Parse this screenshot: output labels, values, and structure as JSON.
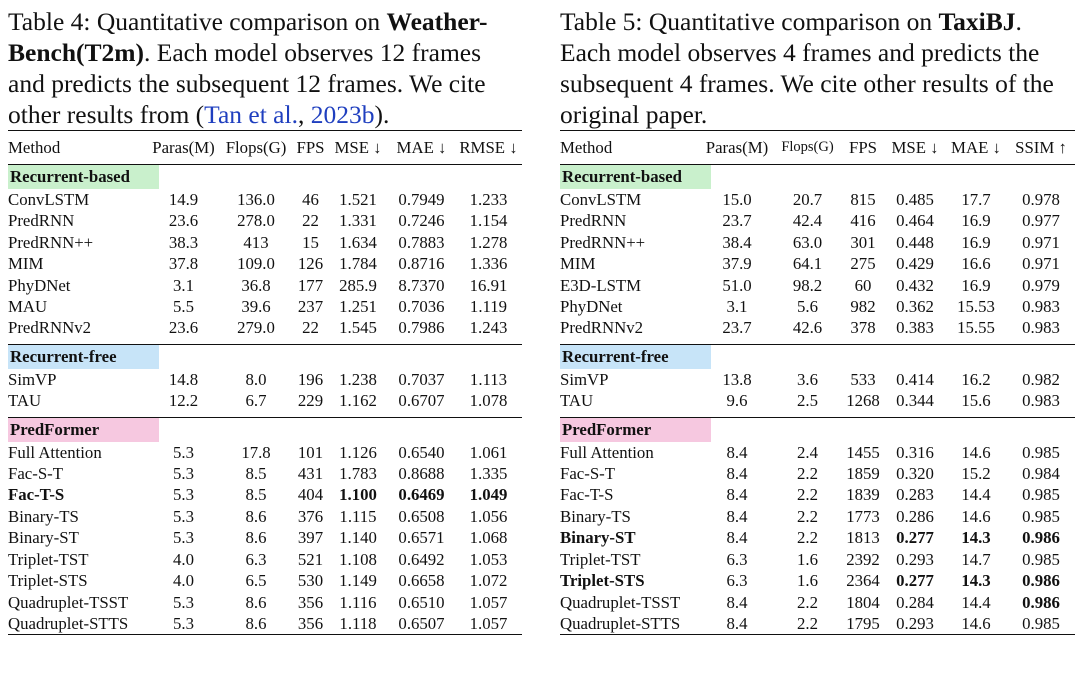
{
  "left_table": {
    "caption": {
      "prefix": "Table 4: Quantitative comparison on ",
      "dataset": "Weather-Bench(T2m)",
      "after_dataset": ". Each model observes 12 frames and predicts the subsequent 12 frames. We cite other results from (",
      "cite_author": "Tan et al.",
      "cite_sep": ", ",
      "cite_year": "2023b",
      "suffix": ")."
    },
    "columns": [
      "Method",
      "Paras(M)",
      "Flops(G)",
      "FPS",
      "MSE ↓",
      "MAE ↓",
      "RMSE ↓"
    ],
    "sections": [
      {
        "label": "Recurrent-based",
        "rows": [
          {
            "cells": [
              "ConvLSTM",
              "14.9",
              "136.0",
              "46",
              "1.521",
              "0.7949",
              "1.233"
            ],
            "bold": []
          },
          {
            "cells": [
              "PredRNN",
              "23.6",
              "278.0",
              "22",
              "1.331",
              "0.7246",
              "1.154"
            ],
            "bold": []
          },
          {
            "cells": [
              "PredRNN++",
              "38.3",
              "413",
              "15",
              "1.634",
              "0.7883",
              "1.278"
            ],
            "bold": []
          },
          {
            "cells": [
              "MIM",
              "37.8",
              "109.0",
              "126",
              "1.784",
              "0.8716",
              "1.336"
            ],
            "bold": []
          },
          {
            "cells": [
              "PhyDNet",
              "3.1",
              "36.8",
              "177",
              "285.9",
              "8.7370",
              "16.91"
            ],
            "bold": []
          },
          {
            "cells": [
              "MAU",
              "5.5",
              "39.6",
              "237",
              "1.251",
              "0.7036",
              "1.119"
            ],
            "bold": []
          },
          {
            "cells": [
              "PredRNNv2",
              "23.6",
              "279.0",
              "22",
              "1.545",
              "0.7986",
              "1.243"
            ],
            "bold": []
          }
        ]
      },
      {
        "label": "Recurrent-free",
        "rows": [
          {
            "cells": [
              "SimVP",
              "14.8",
              "8.0",
              "196",
              "1.238",
              "0.7037",
              "1.113"
            ],
            "bold": []
          },
          {
            "cells": [
              "TAU",
              "12.2",
              "6.7",
              "229",
              "1.162",
              "0.6707",
              "1.078"
            ],
            "bold": []
          }
        ]
      },
      {
        "label": "PredFormer",
        "rows": [
          {
            "cells": [
              "Full Attention",
              "5.3",
              "17.8",
              "101",
              "1.126",
              "0.6540",
              "1.061"
            ],
            "bold": []
          },
          {
            "cells": [
              "Fac-S-T",
              "5.3",
              "8.5",
              "431",
              "1.783",
              "0.8688",
              "1.335"
            ],
            "bold": []
          },
          {
            "cells": [
              "Fac-T-S",
              "5.3",
              "8.5",
              "404",
              "1.100",
              "0.6469",
              "1.049"
            ],
            "bold": [
              0,
              4,
              5,
              6
            ]
          },
          {
            "cells": [
              "Binary-TS",
              "5.3",
              "8.6",
              "376",
              "1.115",
              "0.6508",
              "1.056"
            ],
            "bold": []
          },
          {
            "cells": [
              "Binary-ST",
              "5.3",
              "8.6",
              "397",
              "1.140",
              "0.6571",
              "1.068"
            ],
            "bold": []
          },
          {
            "cells": [
              "Triplet-TST",
              "4.0",
              "6.3",
              "521",
              "1.108",
              "0.6492",
              "1.053"
            ],
            "bold": []
          },
          {
            "cells": [
              "Triplet-STS",
              "4.0",
              "6.5",
              "530",
              "1.149",
              "0.6658",
              "1.072"
            ],
            "bold": []
          },
          {
            "cells": [
              "Quadruplet-TSST",
              "5.3",
              "8.6",
              "356",
              "1.116",
              "0.6510",
              "1.057"
            ],
            "bold": []
          },
          {
            "cells": [
              "Quadruplet-STTS",
              "5.3",
              "8.6",
              "356",
              "1.118",
              "0.6507",
              "1.057"
            ],
            "bold": []
          }
        ]
      }
    ]
  },
  "right_table": {
    "caption": {
      "prefix": "Table 5: Quantitative comparison on ",
      "dataset": "TaxiBJ",
      "after_dataset": ". Each model observes 4 frames and predicts the subsequent 4 frames. We cite other results of the original paper."
    },
    "columns": [
      "Method",
      "Paras(M)",
      "Flops(G)",
      "FPS",
      "MSE ↓",
      "MAE ↓",
      "SSIM ↑"
    ],
    "sections": [
      {
        "label": "Recurrent-based",
        "rows": [
          {
            "cells": [
              "ConvLSTM",
              "15.0",
              "20.7",
              "815",
              "0.485",
              "17.7",
              "0.978"
            ],
            "bold": []
          },
          {
            "cells": [
              "PredRNN",
              "23.7",
              "42.4",
              "416",
              "0.464",
              "16.9",
              "0.977"
            ],
            "bold": []
          },
          {
            "cells": [
              "PredRNN++",
              "38.4",
              "63.0",
              "301",
              "0.448",
              "16.9",
              "0.971"
            ],
            "bold": []
          },
          {
            "cells": [
              "MIM",
              "37.9",
              "64.1",
              "275",
              "0.429",
              "16.6",
              "0.971"
            ],
            "bold": []
          },
          {
            "cells": [
              "E3D-LSTM",
              "51.0",
              "98.2",
              "60",
              "0.432",
              "16.9",
              "0.979"
            ],
            "bold": []
          },
          {
            "cells": [
              "PhyDNet",
              "3.1",
              "5.6",
              "982",
              "0.362",
              "15.53",
              "0.983"
            ],
            "bold": []
          },
          {
            "cells": [
              "PredRNNv2",
              "23.7",
              "42.6",
              "378",
              "0.383",
              "15.55",
              "0.983"
            ],
            "bold": []
          }
        ]
      },
      {
        "label": "Recurrent-free",
        "rows": [
          {
            "cells": [
              "SimVP",
              "13.8",
              "3.6",
              "533",
              "0.414",
              "16.2",
              "0.982"
            ],
            "bold": []
          },
          {
            "cells": [
              "TAU",
              "9.6",
              "2.5",
              "1268",
              "0.344",
              "15.6",
              "0.983"
            ],
            "bold": []
          }
        ]
      },
      {
        "label": "PredFormer",
        "rows": [
          {
            "cells": [
              "Full Attention",
              "8.4",
              "2.4",
              "1455",
              "0.316",
              "14.6",
              "0.985"
            ],
            "bold": []
          },
          {
            "cells": [
              "Fac-S-T",
              "8.4",
              "2.2",
              "1859",
              "0.320",
              "15.2",
              "0.984"
            ],
            "bold": []
          },
          {
            "cells": [
              "Fac-T-S",
              "8.4",
              "2.2",
              "1839",
              "0.283",
              "14.4",
              "0.985"
            ],
            "bold": []
          },
          {
            "cells": [
              "Binary-TS",
              "8.4",
              "2.2",
              "1773",
              "0.286",
              "14.6",
              "0.985"
            ],
            "bold": []
          },
          {
            "cells": [
              "Binary-ST",
              "8.4",
              "2.2",
              "1813",
              "0.277",
              "14.3",
              "0.986"
            ],
            "bold": [
              0,
              4,
              5,
              6
            ]
          },
          {
            "cells": [
              "Triplet-TST",
              "6.3",
              "1.6",
              "2392",
              "0.293",
              "14.7",
              "0.985"
            ],
            "bold": []
          },
          {
            "cells": [
              "Triplet-STS",
              "6.3",
              "1.6",
              "2364",
              "0.277",
              "14.3",
              "0.986"
            ],
            "bold": [
              0,
              4,
              5,
              6
            ]
          },
          {
            "cells": [
              "Quadruplet-TSST",
              "8.4",
              "2.2",
              "1804",
              "0.284",
              "14.4",
              "0.986"
            ],
            "bold": [
              6
            ]
          },
          {
            "cells": [
              "Quadruplet-STTS",
              "8.4",
              "2.2",
              "1795",
              "0.293",
              "14.6",
              "0.985"
            ],
            "bold": []
          }
        ]
      }
    ]
  }
}
